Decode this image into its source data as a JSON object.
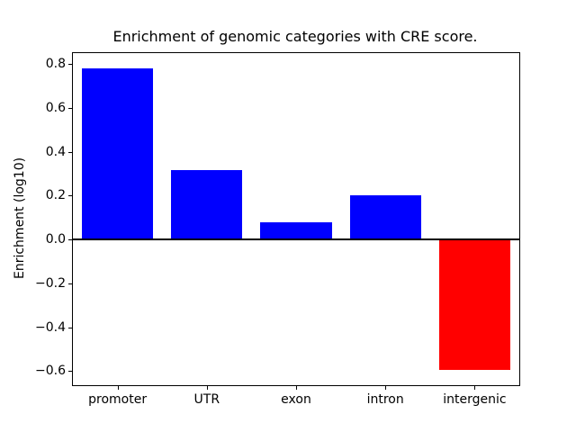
{
  "title": "Enrichment of genomic categories with CRE score.",
  "chart_data": {
    "type": "bar",
    "title": "Enrichment of genomic categories with CRE score.",
    "xlabel": "",
    "ylabel": "Enrichment (log10)",
    "categories": [
      "promoter",
      "UTR",
      "exon",
      "intron",
      "intergenic"
    ],
    "values": [
      0.78,
      0.315,
      0.08,
      0.2,
      -0.595
    ],
    "positive_color": "#0000ff",
    "negative_color": "#ff0000",
    "ylim": [
      -0.664,
      0.849
    ],
    "yticks": [
      0.8,
      0.6,
      0.4,
      0.2,
      0.0,
      -0.2,
      -0.4,
      -0.6
    ],
    "ytick_labels": [
      "0.8",
      "0.6",
      "0.4",
      "0.2",
      "0.0",
      "−0.2",
      "−0.4",
      "−0.6"
    ],
    "zero_line": true,
    "grid": false,
    "legend": null,
    "background": "#ffffff",
    "bar_width_fraction": 0.8
  }
}
